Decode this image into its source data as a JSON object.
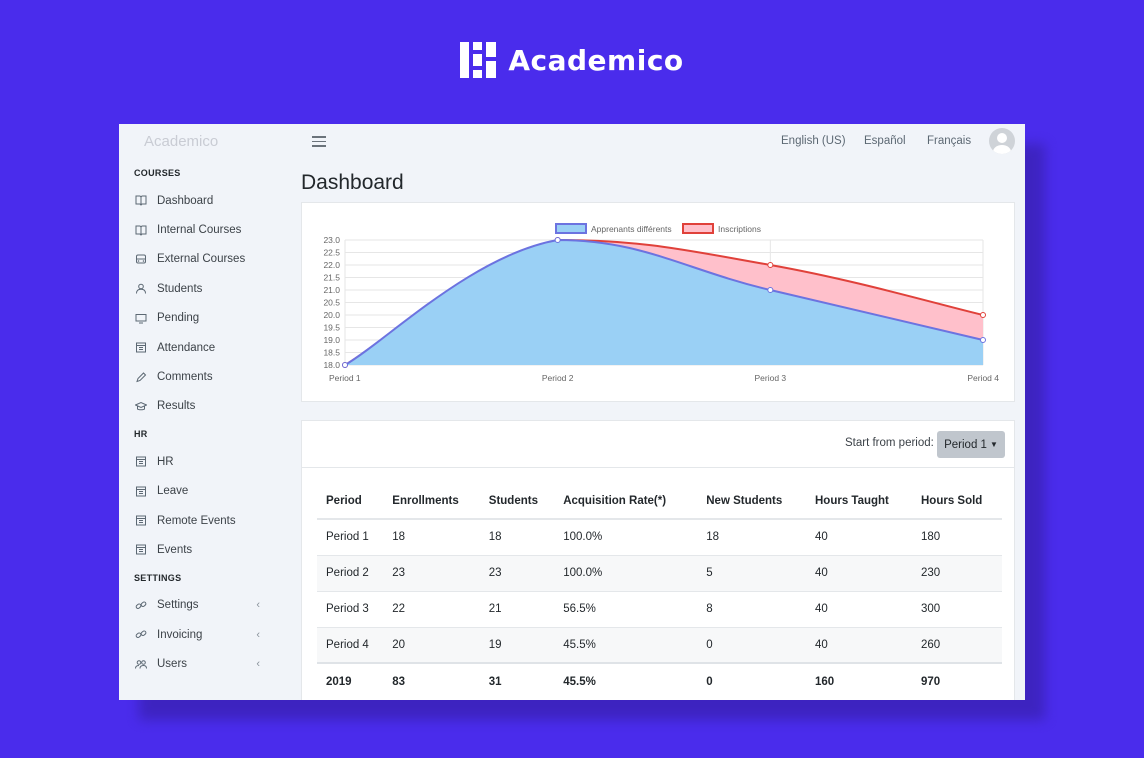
{
  "brand": {
    "name": "Academico"
  },
  "sidebar": {
    "title": "Academico",
    "sections": [
      {
        "label": "COURSES",
        "items": [
          {
            "label": "Dashboard",
            "icon": "book-icon"
          },
          {
            "label": "Internal Courses",
            "icon": "book-icon"
          },
          {
            "label": "External Courses",
            "icon": "bus-icon"
          },
          {
            "label": "Students",
            "icon": "user-icon"
          },
          {
            "label": "Pending",
            "icon": "monitor-icon"
          },
          {
            "label": "Attendance",
            "icon": "calendar-icon"
          },
          {
            "label": "Comments",
            "icon": "pencil-icon"
          },
          {
            "label": "Results",
            "icon": "graduation-cap-icon"
          }
        ]
      },
      {
        "label": "HR",
        "items": [
          {
            "label": "HR",
            "icon": "calendar-icon"
          },
          {
            "label": "Leave",
            "icon": "calendar-icon"
          },
          {
            "label": "Remote Events",
            "icon": "calendar-icon"
          },
          {
            "label": "Events",
            "icon": "calendar-icon"
          }
        ]
      },
      {
        "label": "SETTINGS",
        "items": [
          {
            "label": "Settings",
            "icon": "link-icon",
            "expandable": true
          },
          {
            "label": "Invoicing",
            "icon": "link-icon",
            "expandable": true
          },
          {
            "label": "Users",
            "icon": "users-icon",
            "expandable": true
          }
        ]
      }
    ]
  },
  "topbar": {
    "languages": [
      "English (US)",
      "Español",
      "Français"
    ]
  },
  "page": {
    "title": "Dashboard"
  },
  "chart_data": {
    "type": "area",
    "x": [
      "Period 1",
      "Period 2",
      "Period 3",
      "Period 4"
    ],
    "series": [
      {
        "name": "Apprenants différents",
        "values": [
          18,
          23,
          21,
          19
        ],
        "color": "#9ad0f5",
        "border": "#6c73e0"
      },
      {
        "name": "Inscriptions",
        "values": [
          18,
          23,
          22,
          20
        ],
        "color": "#ffc0cb",
        "border": "#e0413a"
      }
    ],
    "yticks": [
      "23.0",
      "22.5",
      "22.0",
      "21.5",
      "21.0",
      "20.5",
      "20.0",
      "19.5",
      "19.0",
      "18.5",
      "18.0"
    ],
    "ylim": [
      18,
      23
    ],
    "legend": "top",
    "grid": true
  },
  "table": {
    "period_label": "Start from period:",
    "period_selected": "Period 1",
    "headers": [
      "Period",
      "Enrollments",
      "Students",
      "Acquisition Rate(*)",
      "New Students",
      "Hours Taught",
      "Hours Sold"
    ],
    "rows": [
      [
        "Period 1",
        "18",
        "18",
        "100.0%",
        "18",
        "40",
        "180"
      ],
      [
        "Period 2",
        "23",
        "23",
        "100.0%",
        "5",
        "40",
        "230"
      ],
      [
        "Period 3",
        "22",
        "21",
        "56.5%",
        "8",
        "40",
        "300"
      ],
      [
        "Period 4",
        "20",
        "19",
        "45.5%",
        "0",
        "40",
        "260"
      ]
    ],
    "total": [
      "2019",
      "83",
      "31",
      "45.5%",
      "0",
      "160",
      "970"
    ]
  },
  "colors": {
    "background": "#4a2cec",
    "panel": "#f1f4f9"
  }
}
